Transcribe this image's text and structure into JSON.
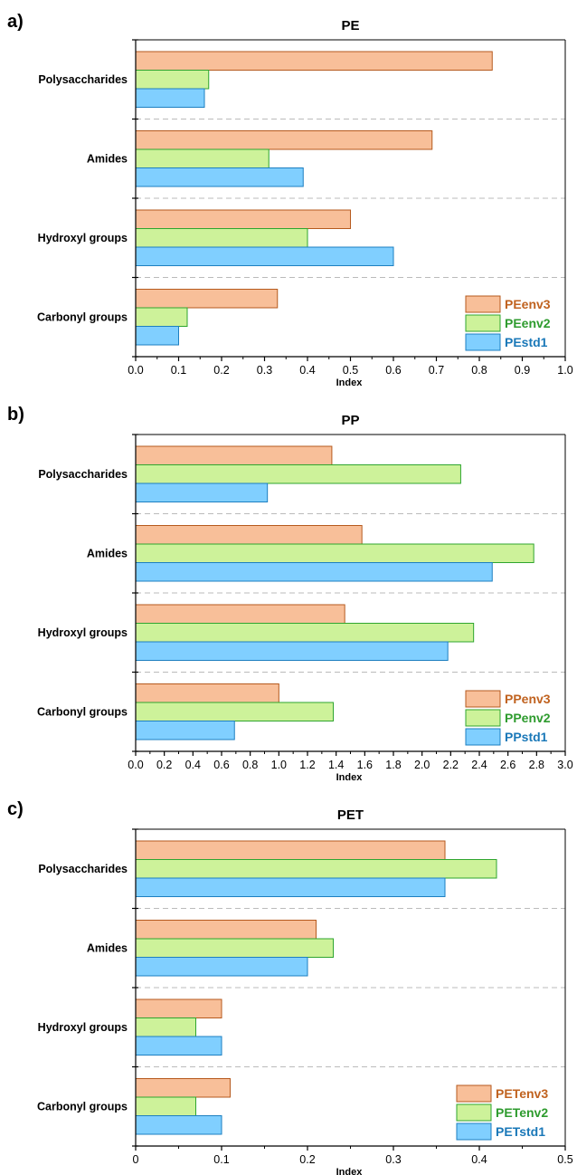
{
  "chart_data": [
    {
      "panel_label": "a)",
      "type": "bar",
      "orientation": "horizontal",
      "title": "PE",
      "xlabel": "Index",
      "ylabel": "",
      "xlim": [
        0,
        1.0
      ],
      "xticks": [
        "0.0",
        "0.1",
        "0.2",
        "0.3",
        "0.4",
        "0.5",
        "0.6",
        "0.7",
        "0.8",
        "0.9",
        "1.0"
      ],
      "xtick_values": [
        0,
        0.1,
        0.2,
        0.3,
        0.4,
        0.5,
        0.6,
        0.7,
        0.8,
        0.9,
        1.0
      ],
      "categories": [
        "Polysaccharides",
        "Amides",
        "Hydroxyl groups",
        "Carbonyl groups"
      ],
      "series": [
        {
          "name": "PEenv3",
          "values": [
            0.83,
            0.69,
            0.5,
            0.33
          ]
        },
        {
          "name": "PEenv2",
          "values": [
            0.17,
            0.31,
            0.4,
            0.12
          ]
        },
        {
          "name": "PEstd1",
          "values": [
            0.16,
            0.39,
            0.6,
            0.1
          ]
        }
      ],
      "legend_position": "bottom-right",
      "grid": "dashed separators between categories"
    },
    {
      "panel_label": "b)",
      "type": "bar",
      "orientation": "horizontal",
      "title": "PP",
      "xlabel": "Index",
      "ylabel": "",
      "xlim": [
        0,
        3.0
      ],
      "xticks": [
        "0.0",
        "0.2",
        "0.4",
        "0.6",
        "0.8",
        "1.0",
        "1.2",
        "1.4",
        "1.6",
        "1.8",
        "2.0",
        "2.2",
        "2.4",
        "2.6",
        "2.8",
        "3.0"
      ],
      "xtick_values": [
        0,
        0.2,
        0.4,
        0.6,
        0.8,
        1.0,
        1.2,
        1.4,
        1.6,
        1.8,
        2.0,
        2.2,
        2.4,
        2.6,
        2.8,
        3.0
      ],
      "categories": [
        "Polysaccharides",
        "Amides",
        "Hydroxyl groups",
        "Carbonyl groups"
      ],
      "series": [
        {
          "name": "PPenv3",
          "values": [
            1.37,
            1.58,
            1.46,
            1.0
          ]
        },
        {
          "name": "PPenv2",
          "values": [
            2.27,
            2.78,
            2.36,
            1.38
          ]
        },
        {
          "name": "PPstd1",
          "values": [
            0.92,
            2.49,
            2.18,
            0.69
          ]
        }
      ],
      "legend_position": "bottom-right",
      "grid": "dashed separators between categories"
    },
    {
      "panel_label": "c)",
      "type": "bar",
      "orientation": "horizontal",
      "title": "PET",
      "xlabel": "Index",
      "ylabel": "",
      "xlim": [
        0,
        0.5
      ],
      "xticks": [
        "0",
        "0.1",
        "0.2",
        "0.3",
        "0.4",
        "0.5"
      ],
      "xtick_values": [
        0,
        0.1,
        0.2,
        0.3,
        0.4,
        0.5
      ],
      "categories": [
        "Polysaccharides",
        "Amides",
        "Hydroxyl groups",
        "Carbonyl groups"
      ],
      "series": [
        {
          "name": "PETenv3",
          "values": [
            0.36,
            0.21,
            0.1,
            0.11
          ]
        },
        {
          "name": "PETenv2",
          "values": [
            0.42,
            0.23,
            0.07,
            0.07
          ]
        },
        {
          "name": "PETstd1",
          "values": [
            0.36,
            0.2,
            0.1,
            0.1
          ]
        }
      ],
      "legend_position": "bottom-right",
      "grid": "dashed separators between categories"
    }
  ],
  "colors": {
    "env3_fill": "#f8bf99",
    "env3_stroke": "#b65a1e",
    "env3_text": "#c0621f",
    "env2_fill": "#cdf29a",
    "env2_stroke": "#2fa52f",
    "env2_text": "#2e9b2e",
    "std1_fill": "#80cfff",
    "std1_stroke": "#1d7fc0",
    "std1_text": "#1a78b8",
    "separator": "#bbbbbb",
    "axis": "#000000"
  }
}
